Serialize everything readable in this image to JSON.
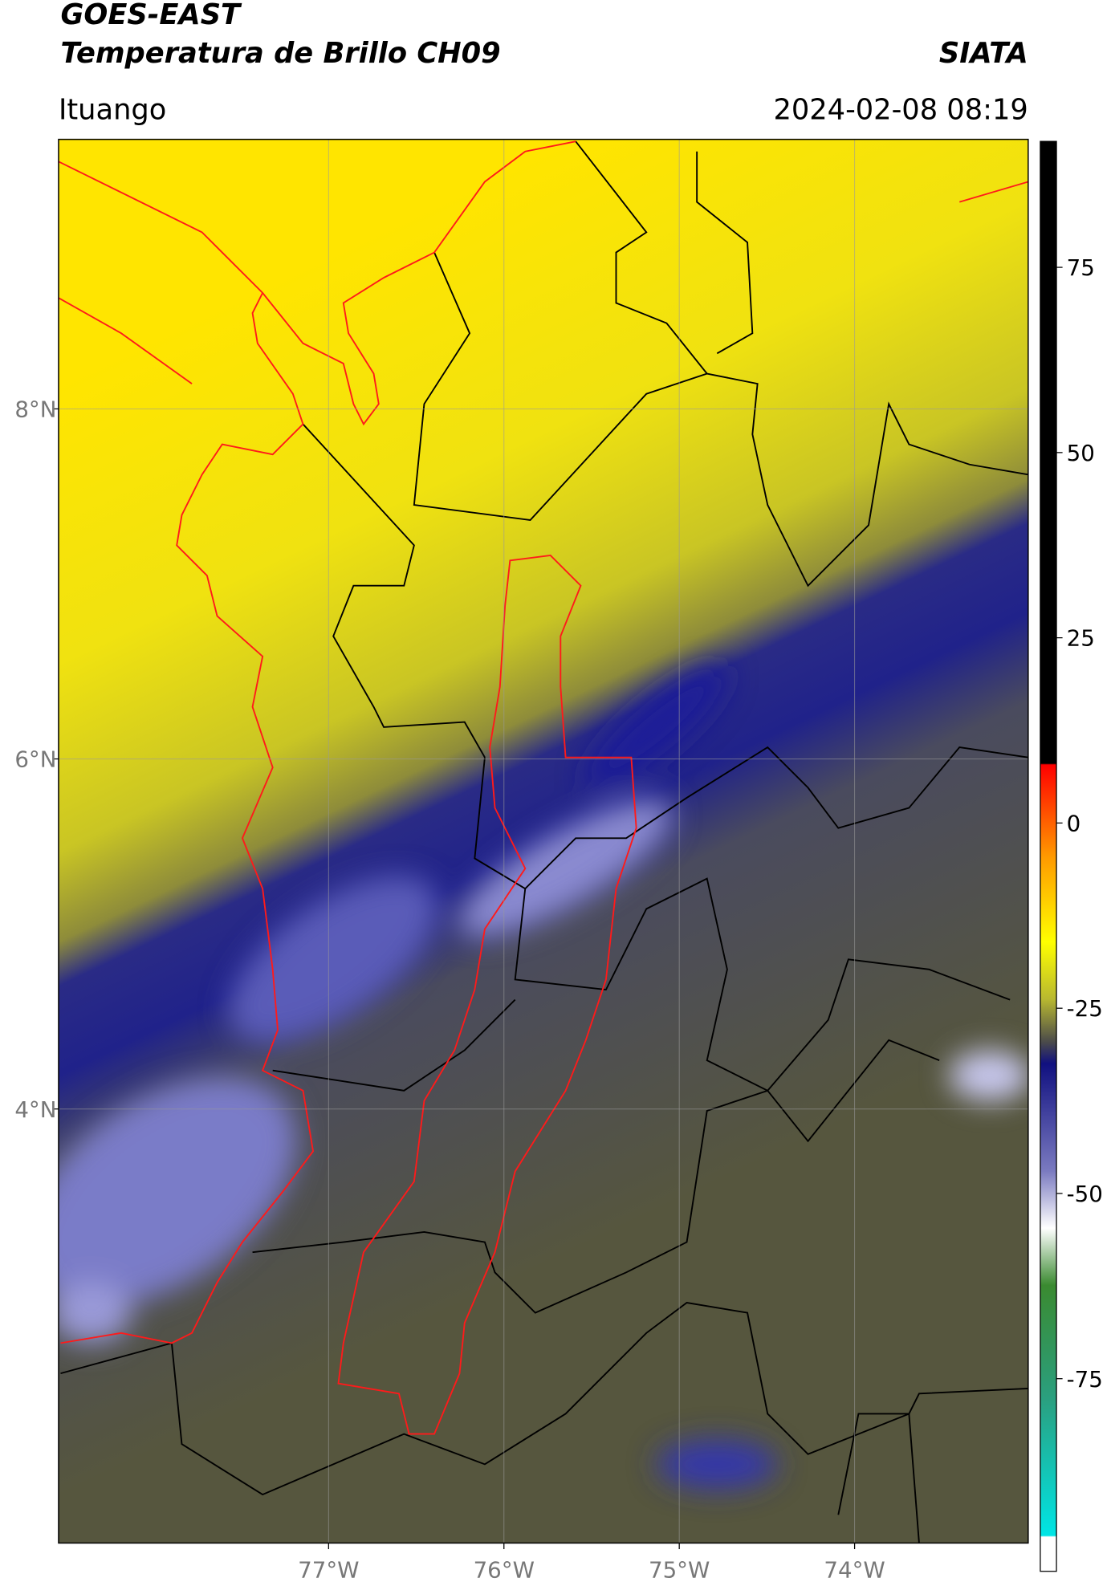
{
  "header": {
    "title_line1": "GOES-EAST",
    "title_line2": "Temperatura de Brillo CH09",
    "brand": "SIATA",
    "location": "Ituango",
    "timestamp": "2024-02-08 08:19"
  },
  "map": {
    "xlim": [
      -78.54,
      -73.01
    ],
    "ylim": [
      1.52,
      9.54
    ],
    "xticks": [
      {
        "value": -77,
        "label": "77°W"
      },
      {
        "value": -76,
        "label": "76°W"
      },
      {
        "value": -75,
        "label": "75°W"
      },
      {
        "value": -74,
        "label": "74°W"
      }
    ],
    "yticks": [
      {
        "value": 8,
        "label": "8°N"
      },
      {
        "value": 6,
        "label": "6°N"
      },
      {
        "value": 4,
        "label": "4°N"
      }
    ],
    "grid": true
  },
  "colorbar": {
    "range": [
      -101,
      92
    ],
    "ticks": [
      75,
      50,
      25,
      0,
      -25,
      -50,
      -75
    ]
  }
}
